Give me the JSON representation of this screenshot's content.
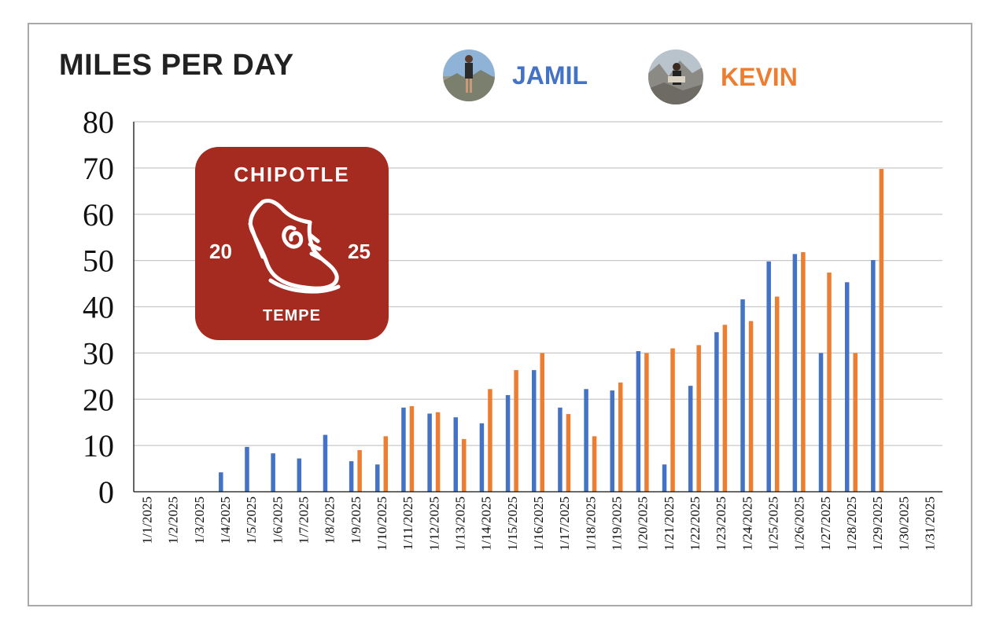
{
  "chart_data": {
    "type": "bar",
    "title": "MILES PER DAY",
    "categories": [
      "1/1/2025",
      "1/2/2025",
      "1/3/2025",
      "1/4/2025",
      "1/5/2025",
      "1/6/2025",
      "1/7/2025",
      "1/8/2025",
      "1/9/2025",
      "1/10/2025",
      "1/11/2025",
      "1/12/2025",
      "1/13/2025",
      "1/14/2025",
      "1/15/2025",
      "1/16/2025",
      "1/17/2025",
      "1/18/2025",
      "1/19/2025",
      "1/20/2025",
      "1/21/2025",
      "1/22/2025",
      "1/23/2025",
      "1/24/2025",
      "1/25/2025",
      "1/26/2025",
      "1/27/2025",
      "1/28/2025",
      "1/29/2025",
      "1/30/2025",
      "1/31/2025"
    ],
    "series": [
      {
        "name": "JAMIL",
        "color": "#4472c4",
        "values": [
          0,
          0,
          0,
          4.2,
          9.7,
          8.3,
          7.2,
          12.3,
          6.6,
          5.9,
          18.2,
          16.9,
          16.1,
          14.8,
          20.9,
          26.3,
          18.2,
          22.2,
          21.9,
          30.4,
          5.9,
          22.9,
          34.5,
          41.6,
          49.8,
          51.4,
          30.0,
          45.3,
          50.1,
          0,
          0
        ]
      },
      {
        "name": "KEVIN",
        "color": "#ed7d31",
        "values": [
          0,
          0,
          0,
          0,
          0,
          0,
          0,
          0,
          9.0,
          12.0,
          18.5,
          17.2,
          11.4,
          22.2,
          26.3,
          30.0,
          16.8,
          12.0,
          23.6,
          30.0,
          31.0,
          31.7,
          36.1,
          36.9,
          42.2,
          51.8,
          47.4,
          30.0,
          69.8,
          0,
          0
        ]
      }
    ],
    "yticks": [
      "0",
      "10",
      "20",
      "30",
      "40",
      "50",
      "60",
      "70",
      "80"
    ],
    "ylim": [
      0,
      80
    ],
    "grid": true,
    "legend_position": "top"
  },
  "legend": {
    "jamil": {
      "label": "JAMIL",
      "color": "#4472c4"
    },
    "kevin": {
      "label": "KEVIN",
      "color": "#ed7d31"
    }
  },
  "logo": {
    "top_text": "CHIPOTLE",
    "left_text": "20",
    "right_text": "25",
    "bottom_text": "TEMPE",
    "background": "#a52a1f"
  }
}
